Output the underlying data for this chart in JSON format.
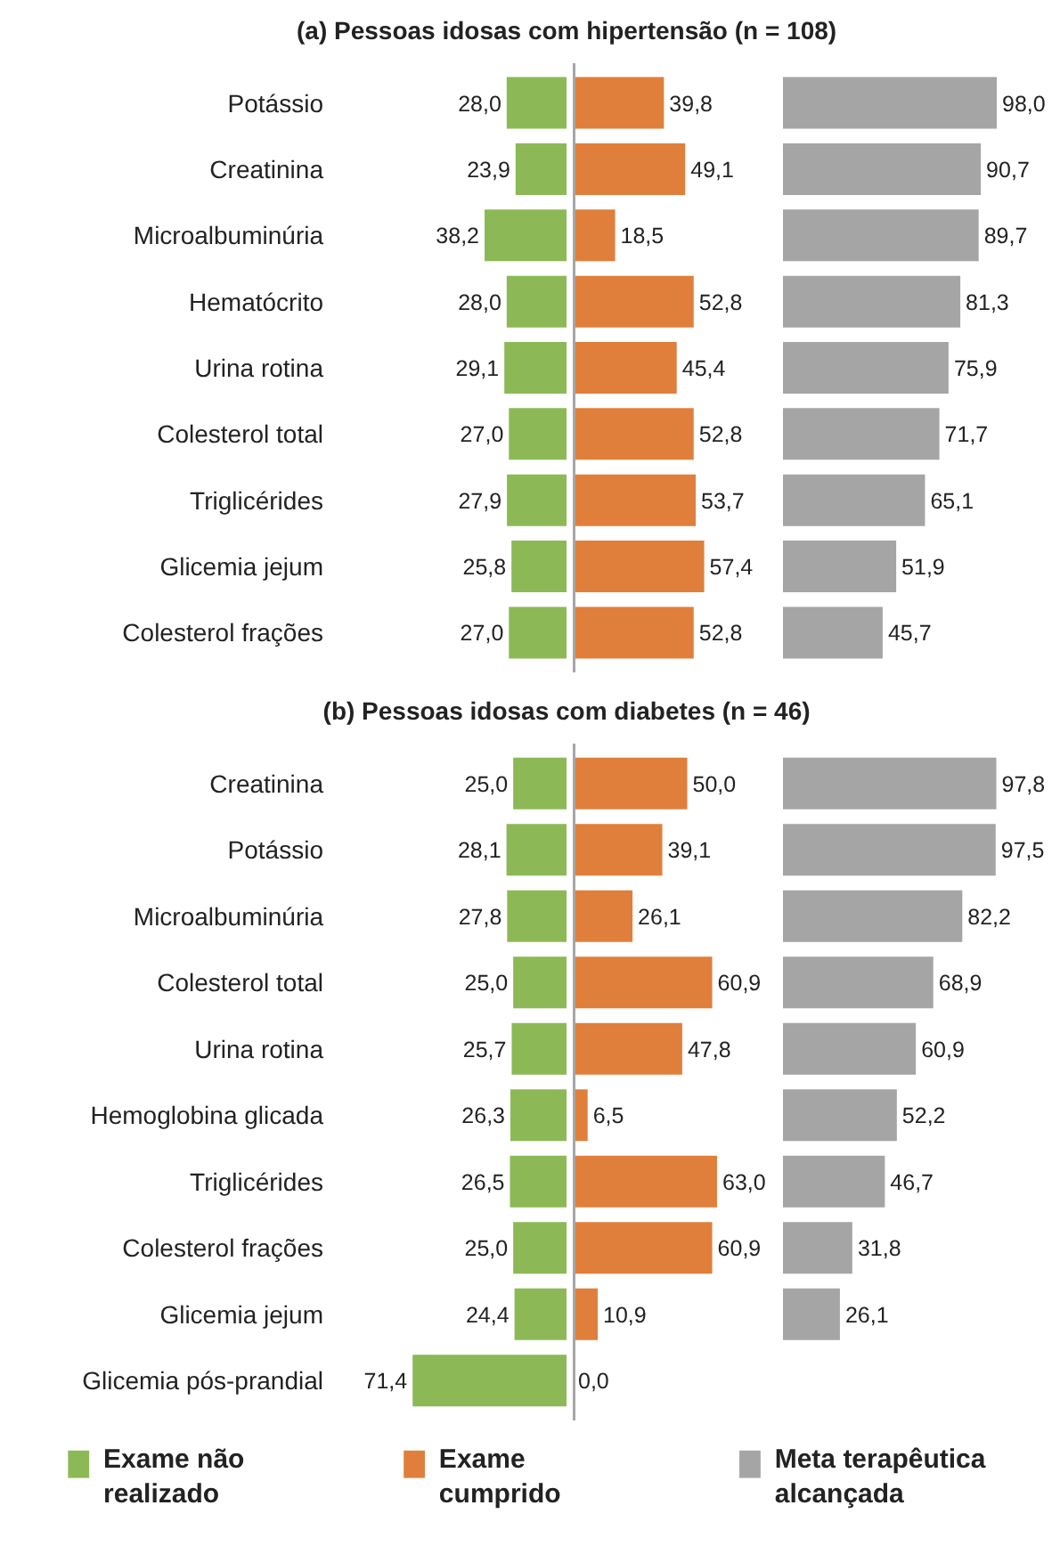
{
  "chart_data": [
    {
      "type": "bar",
      "orientation": "horizontal",
      "title": "(a)      Pessoas idosas com hipertensão (n = 108)",
      "categories": [
        "Potássio",
        "Creatinina",
        "Microalbuminúria",
        "Hematócrito",
        "Urina rotina",
        "Colesterol total",
        "Triglicérides",
        "Glicemia jejum",
        "Colesterol frações"
      ],
      "tick_labels": "y",
      "series": [
        {
          "color": "#8cb955",
          "values": [
            28.0,
            23.9,
            38.2,
            28.0,
            29.1,
            27.0,
            27.9,
            25.8,
            27.0
          ],
          "value_labels": [
            "28,0",
            "23,9",
            "38,2",
            "28,0",
            "29,1",
            "27,0",
            "27,9",
            "25,8",
            "27,0"
          ]
        }
      ]
    },
    {
      "type": "bar",
      "orientation": "horizontal",
      "categories": [
        null,
        null,
        null,
        null,
        null,
        null,
        null,
        null,
        null
      ],
      "tick_labels": false,
      "series": [
        {
          "color": "#e07f3b",
          "values": [
            39.8,
            49.1,
            18.5,
            52.8,
            45.4,
            52.8,
            53.7,
            57.4,
            52.8
          ],
          "value_labels": [
            "39,8",
            "49,1",
            "18,5",
            "52,8",
            "45,4",
            "52,8",
            "53,7",
            "57,4",
            "52,8"
          ]
        }
      ]
    },
    {
      "type": "bar",
      "orientation": "horizontal",
      "categories": [
        null,
        null,
        null,
        null,
        null,
        null,
        null,
        null,
        null
      ],
      "tick_labels": false,
      "series": [
        {
          "color": "#a5a5a5",
          "values": [
            98.0,
            90.7,
            89.7,
            81.3,
            75.9,
            71.7,
            65.1,
            51.9,
            45.7
          ],
          "value_labels": [
            "98,0",
            "90,7",
            "89,7",
            "81,3",
            "75,9",
            "71,7",
            "65,1",
            "51,9",
            "45,7"
          ]
        }
      ]
    },
    {
      "type": "bar",
      "orientation": "horizontal",
      "title": "(b)      Pessoas idosas com diabetes (n = 46)",
      "categories": [
        "Creatinina",
        "Potássio",
        "Microalbuminúria",
        "Colesterol total",
        "Urina rotina",
        "Hemoglobina glicada",
        "Triglicérides",
        "Colesterol frações",
        "Glicemia jejum",
        "Glicemia pós-prandial"
      ],
      "tick_labels": "y",
      "legend": "bottom",
      "series": [
        {
          "name": "Exame não realizado",
          "color": "#8cb955",
          "values": [
            25.0,
            28.1,
            27.8,
            25.0,
            25.7,
            26.3,
            26.5,
            25.0,
            24.4,
            71.4
          ],
          "value_labels": [
            "25,0",
            "28,1",
            "27,8",
            "25,0",
            "25,7",
            "26,3",
            "26,5",
            "25,0",
            "24,4",
            "71,4"
          ]
        }
      ]
    },
    {
      "type": "bar",
      "orientation": "horizontal",
      "categories": [
        null,
        null,
        null,
        null,
        null,
        null,
        null,
        null,
        null,
        null
      ],
      "tick_labels": false,
      "legend": "bottom",
      "series": [
        {
          "name": "Exame cumprido",
          "color": "#e07f3b",
          "values": [
            50.0,
            39.1,
            26.1,
            60.9,
            47.8,
            6.5,
            63.0,
            60.9,
            10.9,
            0.0
          ],
          "value_labels": [
            "50,0",
            "39,1",
            "26,1",
            "60,9",
            "47,8",
            "6,5",
            "63,0",
            "60,9",
            "10,9",
            "0,0"
          ]
        }
      ]
    },
    {
      "type": "bar",
      "orientation": "horizontal",
      "categories": [
        null,
        null,
        null,
        null,
        null,
        null,
        null,
        null,
        null,
        null
      ],
      "tick_labels": false,
      "legend": "bottom",
      "series": [
        {
          "name": "Meta terapêutica alcançada",
          "color": "#a5a5a5",
          "values": [
            97.8,
            97.5,
            82.2,
            68.9,
            60.9,
            52.2,
            46.7,
            31.8,
            26.1,
            null
          ],
          "value_labels": [
            "97,8",
            "97,5",
            "82,2",
            "68,9",
            "60,9",
            "52,2",
            "46,7",
            "31,8",
            "26,1",
            null
          ]
        }
      ]
    }
  ]
}
